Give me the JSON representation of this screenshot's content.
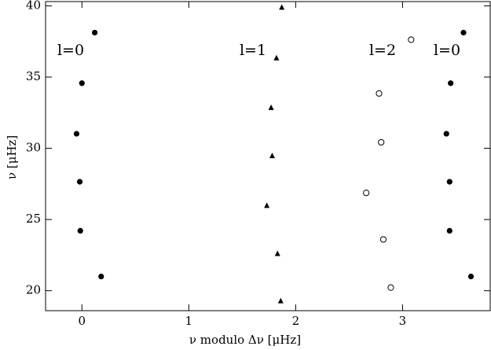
{
  "chart_data": {
    "type": "scatter",
    "xlabel": "ν modulo Δν  [μHz]",
    "ylabel": "ν  [μHz]",
    "xlim": [
      -0.34,
      3.82
    ],
    "ylim": [
      18.6,
      40.3
    ],
    "xticks": [
      0,
      1,
      2,
      3
    ],
    "yticks": [
      20,
      25,
      30,
      35,
      40
    ],
    "annotations": [
      "l=0",
      "l=1",
      "l=2",
      "l=0"
    ],
    "series": [
      {
        "marker": "circle",
        "color": "#000000",
        "x": [
          0.12,
          0.0,
          -0.05,
          -0.02,
          -0.015,
          0.18,
          3.57,
          3.45,
          3.41,
          3.44,
          3.44,
          3.64
        ],
        "y": [
          38.12,
          34.57,
          31.02,
          27.65,
          24.21,
          21.0,
          38.12,
          34.57,
          31.02,
          27.65,
          24.21,
          21.0
        ]
      },
      {
        "marker": "triangle",
        "color": "#000000",
        "x": [
          1.87,
          1.82,
          1.77,
          1.78,
          1.73,
          1.83,
          1.86
        ],
        "y": [
          39.89,
          36.34,
          32.85,
          29.47,
          25.98,
          22.6,
          19.28
        ]
      },
      {
        "marker": "open-circle",
        "color": "#000000",
        "x": [
          3.08,
          2.78,
          2.8,
          2.66,
          2.82,
          2.89
        ],
        "y": [
          37.62,
          33.85,
          30.42,
          26.87,
          23.6,
          20.22
        ]
      }
    ]
  }
}
